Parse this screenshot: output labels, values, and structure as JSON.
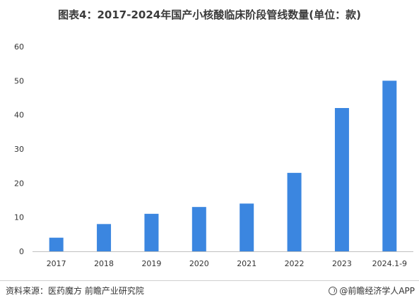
{
  "title": "图表4：2017-2024年国产小核酸临床阶段管线数量(单位：款)",
  "chart_data": {
    "type": "bar",
    "categories": [
      "2017",
      "2018",
      "2019",
      "2020",
      "2021",
      "2022",
      "2023",
      "2024.1-9"
    ],
    "values": [
      4,
      8,
      11,
      13,
      14,
      23,
      42,
      50
    ],
    "ylim": [
      0,
      60
    ],
    "yticks": [
      0,
      10,
      20,
      30,
      40,
      50,
      60
    ],
    "grid": false,
    "bar_color": "#3b86e0"
  },
  "footer": {
    "source": "资料来源：医药魔方 前瞻产业研究院",
    "brand": "@前瞻经济学人APP"
  }
}
